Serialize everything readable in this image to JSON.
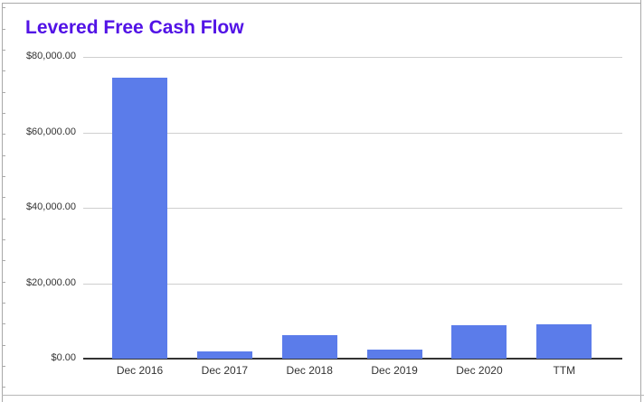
{
  "chart_data": {
    "type": "bar",
    "title": "Levered Free Cash Flow",
    "categories": [
      "Dec 2016",
      "Dec 2017",
      "Dec 2018",
      "Dec 2019",
      "Dec 2020",
      "TTM"
    ],
    "values": [
      74400,
      2000,
      6300,
      2500,
      8900,
      9000
    ],
    "xlabel": "",
    "ylabel": "",
    "ylim": [
      0,
      80000
    ],
    "grid": true,
    "legend_position": "none",
    "y_ticks": [
      {
        "value": 0,
        "label": "$0.00"
      },
      {
        "value": 20000,
        "label": "$20,000.00"
      },
      {
        "value": 40000,
        "label": "$40,000.00"
      },
      {
        "value": 60000,
        "label": "$60,000.00"
      },
      {
        "value": 80000,
        "label": "$80,000.00"
      }
    ],
    "bar_color": "#5b7cea",
    "title_color": "#5213e6",
    "gridline_color": "#cfcfcf",
    "axis_color": "#333333",
    "label_color": "#333333"
  }
}
